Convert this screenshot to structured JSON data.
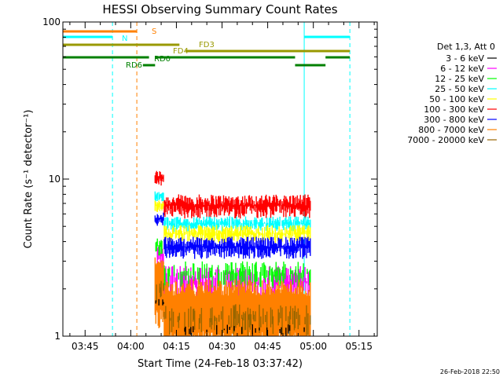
{
  "chart_data": {
    "type": "line",
    "title": "HESSI Observing Summary Count Rates",
    "xlabel": "Start Time (24-Feb-18 03:37:42)",
    "ylabel": "Count Rate (s⁻¹ detector⁻¹)",
    "y_scale": "log",
    "ylim": [
      1,
      100
    ],
    "xlim": [
      "03:37:42",
      "05:21:00"
    ],
    "x_ticks": [
      "03:45",
      "04:00",
      "04:15",
      "04:30",
      "04:45",
      "05:00",
      "05:15"
    ],
    "y_ticks": [
      "1",
      "10",
      "100"
    ],
    "legend_header": "Det 1,3, Att 0",
    "legend_position": "right",
    "grid": false,
    "series": [
      {
        "name": "3 - 6 keV",
        "color": "#000000",
        "baseline": 1.1,
        "spread": 0.1,
        "density": 0.1
      },
      {
        "name": "6 - 12 keV",
        "color": "#ff00ff",
        "baseline": 2.2,
        "spread": 0.6,
        "density": 0.7
      },
      {
        "name": "12 - 25 keV",
        "color": "#00ff00",
        "baseline": 2.5,
        "spread": 0.5,
        "density": 0.5
      },
      {
        "name": "25 - 50 keV",
        "color": "#00ffff",
        "baseline": 5.2,
        "spread": 0.6,
        "density": 0.9
      },
      {
        "name": "50 - 100 keV",
        "color": "#ffff00",
        "baseline": 4.5,
        "spread": 0.6,
        "density": 0.9
      },
      {
        "name": "100 - 300 keV",
        "color": "#ff0000",
        "baseline": 6.8,
        "spread": 1.2,
        "density": 1.0
      },
      {
        "name": "300 - 800 keV",
        "color": "#0000ff",
        "baseline": 3.7,
        "spread": 0.6,
        "density": 1.0
      },
      {
        "name": "800 - 7000 keV",
        "color": "#ff8000",
        "baseline": 1.8,
        "spread": 0.5,
        "density": 1.0
      },
      {
        "name": "7000 - 20000 keV",
        "color": "#996600",
        "baseline": 1.3,
        "spread": 0.3,
        "density": 0.4
      }
    ],
    "data_window": {
      "start": "04:08",
      "end": "04:59"
    },
    "vertical_markers": [
      {
        "time": "03:37:42",
        "color": "#00ffff",
        "style": "solid"
      },
      {
        "time": "03:54",
        "color": "#00ffff",
        "style": "dashed"
      },
      {
        "time": "04:02",
        "color": "#ff8000",
        "style": "dashed"
      },
      {
        "time": "04:57",
        "color": "#00ffff",
        "style": "solid"
      },
      {
        "time": "05:12",
        "color": "#00ffff",
        "style": "dashed"
      }
    ],
    "flag_bars": [
      {
        "label": "S",
        "color": "#ff8000",
        "segments": [
          [
            "03:37:42",
            "04:02"
          ]
        ]
      },
      {
        "label": "N",
        "color": "#00ffff",
        "segments": [
          [
            "03:37:42",
            "03:54"
          ],
          [
            "04:57",
            "05:12"
          ]
        ]
      },
      {
        "label": "FD3",
        "color": "#999900",
        "segments": [
          [
            "03:37:42",
            "04:16"
          ]
        ]
      },
      {
        "label": "FD4",
        "color": "#999900",
        "segments": [
          [
            "04:18",
            "05:12"
          ]
        ]
      },
      {
        "label": "RD0",
        "color": "#008000",
        "segments": [
          [
            "03:37:42",
            "04:06"
          ],
          [
            "04:08",
            "04:54"
          ],
          [
            "05:04",
            "05:12"
          ]
        ]
      },
      {
        "label": "RD6",
        "color": "#008000",
        "segments": [
          [
            "04:04",
            "04:08"
          ],
          [
            "04:54",
            "05:04"
          ]
        ]
      }
    ]
  },
  "footer": {
    "timestamp": "26-Feb-2018 22:50"
  }
}
